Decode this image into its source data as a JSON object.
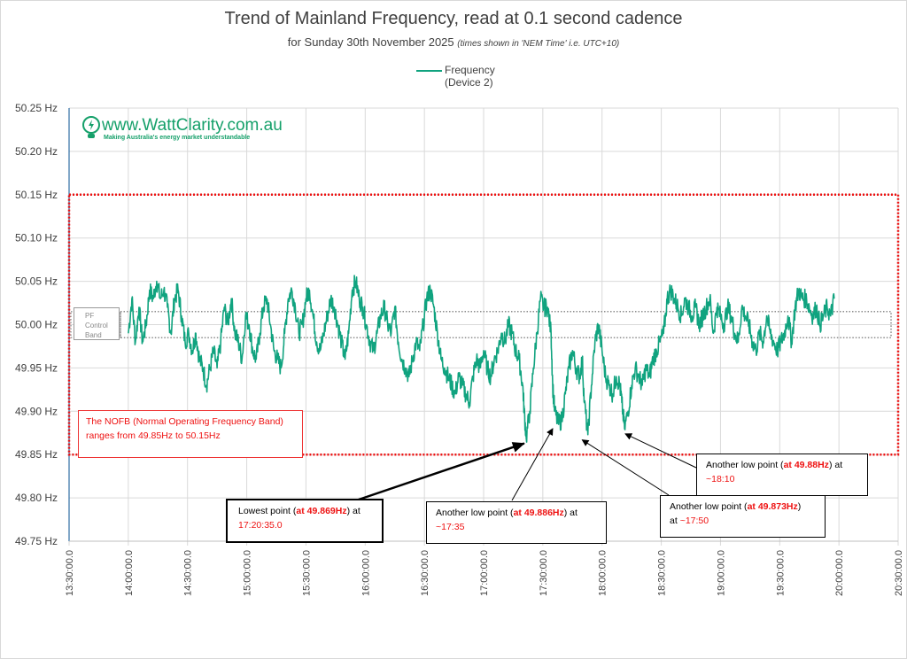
{
  "chart_data": {
    "type": "line",
    "title": "Trend of Mainland Frequency, read at 0.1 second cadence",
    "subtitle": "for Sunday 30th November 2025",
    "subtitle_note": "(times shown in 'NEM Time' i.e. UTC+10)",
    "legend": [
      "Frequency",
      "(Device 2)"
    ],
    "legend_position": "top-center",
    "series_color": "#10a37f",
    "xlim": [
      "13:30:00.0",
      "20:30:00.0"
    ],
    "xlim_hours": [
      13.5,
      20.5
    ],
    "ylim": [
      49.75,
      50.25
    ],
    "grid": true,
    "y_ticks": [
      "50.25 Hz",
      "50.20 Hz",
      "50.15 Hz",
      "50.10 Hz",
      "50.05 Hz",
      "50.00 Hz",
      "49.95 Hz",
      "49.90 Hz",
      "49.85 Hz",
      "49.80 Hz",
      "49.75 Hz"
    ],
    "x_ticks": [
      "13:30:00.0",
      "14:00:00.0",
      "14:30:00.0",
      "15:00:00.0",
      "15:30:00.0",
      "16:00:00.0",
      "16:30:00.0",
      "17:00:00.0",
      "17:30:00.0",
      "18:00:00.0",
      "18:30:00.0",
      "19:00:00.0",
      "19:30:00.0",
      "20:00:00.0",
      "20:30:00.0"
    ],
    "series": [
      {
        "name": "Frequency (Device 2)",
        "x_hours": [
          14.0,
          14.03,
          14.06,
          14.09,
          14.12,
          14.15,
          14.18,
          14.21,
          14.24,
          14.27,
          14.3,
          14.33,
          14.36,
          14.39,
          14.42,
          14.45,
          14.48,
          14.51,
          14.54,
          14.57,
          14.6,
          14.63,
          14.66,
          14.69,
          14.72,
          14.75,
          14.78,
          14.81,
          14.84,
          14.87,
          14.9,
          14.93,
          14.96,
          14.99,
          15.02,
          15.05,
          15.08,
          15.11,
          15.14,
          15.17,
          15.2,
          15.23,
          15.26,
          15.29,
          15.32,
          15.35,
          15.38,
          15.41,
          15.44,
          15.47,
          15.5,
          15.53,
          15.56,
          15.59,
          15.62,
          15.65,
          15.68,
          15.71,
          15.74,
          15.77,
          15.8,
          15.83,
          15.86,
          15.89,
          15.92,
          15.95,
          15.98,
          16.01,
          16.04,
          16.07,
          16.1,
          16.13,
          16.16,
          16.19,
          16.22,
          16.25,
          16.28,
          16.31,
          16.34,
          16.37,
          16.4,
          16.43,
          16.46,
          16.49,
          16.52,
          16.55,
          16.58,
          16.61,
          16.64,
          16.67,
          16.7,
          16.73,
          16.76,
          16.79,
          16.82,
          16.85,
          16.88,
          16.91,
          16.94,
          16.97,
          17.0,
          17.03,
          17.06,
          17.09,
          17.12,
          17.15,
          17.18,
          17.21,
          17.24,
          17.27,
          17.3,
          17.33,
          17.343,
          17.36,
          17.39,
          17.42,
          17.45,
          17.48,
          17.51,
          17.54,
          17.57,
          17.583,
          17.6,
          17.63,
          17.66,
          17.69,
          17.72,
          17.75,
          17.78,
          17.81,
          17.833,
          17.85,
          17.88,
          17.91,
          17.94,
          17.97,
          18.0,
          18.03,
          18.06,
          18.09,
          18.12,
          18.15,
          18.167,
          18.19,
          18.22,
          18.25,
          18.28,
          18.31,
          18.34,
          18.37,
          18.4,
          18.43,
          18.46,
          18.49,
          18.52,
          18.55,
          18.58,
          18.61,
          18.64,
          18.67,
          18.7,
          18.73,
          18.76,
          18.79,
          18.82,
          18.85,
          18.88,
          18.91,
          18.94,
          18.97,
          19.0,
          19.03,
          19.06,
          19.09,
          19.12,
          19.15,
          19.18,
          19.21,
          19.24,
          19.27,
          19.3,
          19.33,
          19.36,
          19.39,
          19.42,
          19.45,
          19.48,
          19.51,
          19.54,
          19.57,
          19.6,
          19.63,
          19.66,
          19.69,
          19.72,
          19.75,
          19.78,
          19.81,
          19.84,
          19.87,
          19.9,
          19.93,
          19.96,
          19.99
        ],
        "values": [
          49.99,
          50.03,
          49.98,
          50.02,
          49.98,
          50.0,
          50.04,
          50.03,
          50.05,
          50.03,
          50.04,
          50.02,
          49.99,
          50.03,
          50.04,
          50.01,
          49.98,
          49.99,
          49.97,
          49.99,
          49.96,
          49.95,
          49.93,
          49.95,
          49.97,
          49.95,
          49.98,
          50.02,
          50.0,
          50.03,
          49.99,
          49.98,
          49.96,
          50.01,
          50.0,
          49.97,
          49.96,
          49.99,
          50.02,
          50.03,
          50.0,
          49.97,
          49.96,
          49.95,
          49.99,
          50.03,
          50.04,
          50.02,
          49.99,
          50.0,
          50.03,
          50.04,
          50.01,
          49.98,
          49.97,
          49.99,
          50.01,
          50.03,
          50.02,
          50.0,
          49.98,
          49.96,
          49.99,
          50.04,
          50.05,
          50.03,
          50.02,
          50.0,
          49.98,
          49.97,
          49.99,
          50.01,
          50.02,
          50.0,
          49.99,
          50.02,
          49.98,
          49.96,
          49.95,
          49.94,
          49.96,
          49.98,
          49.97,
          50.0,
          50.03,
          50.04,
          50.02,
          49.99,
          49.96,
          49.95,
          49.94,
          49.93,
          49.92,
          49.94,
          49.93,
          49.92,
          49.91,
          49.94,
          49.96,
          49.95,
          49.97,
          49.95,
          49.94,
          49.96,
          49.97,
          49.99,
          49.98,
          50.0,
          49.99,
          49.97,
          49.96,
          49.93,
          49.9,
          49.869,
          49.9,
          49.95,
          49.99,
          50.03,
          50.02,
          50.02,
          49.99,
          49.93,
          49.9,
          49.886,
          49.89,
          49.92,
          49.95,
          49.97,
          49.95,
          49.94,
          49.96,
          49.91,
          49.873,
          49.93,
          49.98,
          50.0,
          49.97,
          49.94,
          49.93,
          49.92,
          49.94,
          49.93,
          49.91,
          49.88,
          49.9,
          49.93,
          49.95,
          49.94,
          49.93,
          49.95,
          49.94,
          49.96,
          49.97,
          49.98,
          49.99,
          50.03,
          50.04,
          50.03,
          50.02,
          50.01,
          50.03,
          50.02,
          50.01,
          50.02,
          50.0,
          50.01,
          50.02,
          50.03,
          49.99,
          50.02,
          50.01,
          50.0,
          50.02,
          50.01,
          49.99,
          49.98,
          50.02,
          50.01,
          50.0,
          49.98,
          49.97,
          49.99,
          49.98,
          50.01,
          49.99,
          49.98,
          49.97,
          49.98,
          49.99,
          50.01,
          49.98,
          50.02,
          50.04,
          50.03,
          50.03,
          50.02,
          50.01,
          50.02,
          50.0,
          50.01,
          50.02,
          50.01,
          50.03
        ]
      }
    ],
    "bands": [
      {
        "name": "NOFB",
        "low": 49.85,
        "high": 50.15,
        "color": "#ee1111",
        "style": "dotted"
      },
      {
        "name": "PF Control Band",
        "low": 49.985,
        "high": 50.015,
        "color": "#666666",
        "style": "dotted"
      }
    ],
    "annotations": [
      {
        "id": "lowest",
        "text_pre": "Lowest point (",
        "value": "at 49.869Hz",
        "text_mid": ") at",
        "time": "17:20:35.0",
        "x_hours": 17.343,
        "y": 49.869
      },
      {
        "id": "low1735",
        "text_pre": "Another low point (",
        "value": "at 49.886Hz",
        "text_mid": ") at",
        "time": "~17:35",
        "x_hours": 17.583,
        "y": 49.886
      },
      {
        "id": "low1750",
        "text_pre": "Another low point (",
        "value": "at 49.873Hz",
        "text_mid": ")",
        "text_post": "at",
        "time": "~17:50",
        "x_hours": 17.833,
        "y": 49.873
      },
      {
        "id": "low1810",
        "text_pre": "Another low point (",
        "value": "at 49.88Hz",
        "text_mid": ") at",
        "time": "~18:10",
        "x_hours": 18.167,
        "y": 49.88
      }
    ],
    "nofb_note": [
      "The NOFB  (Normal Operating Frequency Band)",
      "ranges from 49.85Hz to 50.15Hz"
    ],
    "pf_label": [
      "PF",
      "Control",
      "Band"
    ]
  },
  "logo": {
    "url": "www.WattClarity.com.au",
    "tagline": "Making Australia's energy market understandable"
  }
}
